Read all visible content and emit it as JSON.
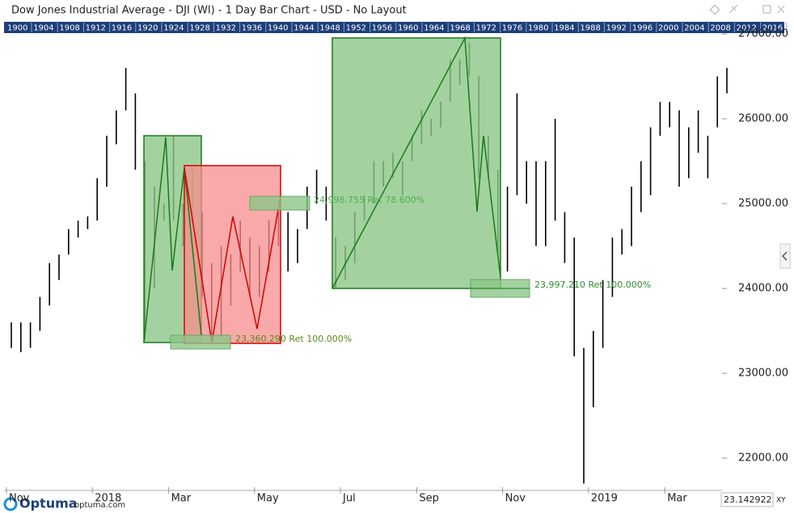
{
  "window": {
    "title": "Dow Jones Industrial Average - DJI (WI) - 1 Day Bar Chart - USD - No Layout"
  },
  "ruler_years": [
    "1900",
    "1904",
    "1908",
    "1912",
    "1916",
    "1920",
    "1924",
    "1928",
    "1932",
    "1936",
    "1940",
    "1944",
    "1948",
    "1952",
    "1956",
    "1960",
    "1964",
    "1968",
    "1972",
    "1976",
    "1980",
    "1984",
    "1988",
    "1992",
    "1996",
    "2000",
    "2004",
    "2008",
    "2012",
    "2016"
  ],
  "chart_data": {
    "type": "hilo",
    "categories": [
      "Nov",
      null,
      null,
      null,
      null,
      null,
      null,
      null,
      null,
      "2018",
      null,
      null,
      null,
      null,
      null,
      null,
      null,
      "Mar",
      null,
      null,
      null,
      null,
      null,
      null,
      null,
      null,
      "May",
      null,
      null,
      null,
      null,
      null,
      null,
      null,
      null,
      "Jul",
      null,
      null,
      null,
      null,
      null,
      null,
      null,
      "Sep",
      null,
      null,
      null,
      null,
      null,
      null,
      null,
      null,
      "Nov",
      null,
      null,
      null,
      null,
      null,
      null,
      null,
      null,
      "2019",
      null,
      null,
      null,
      null,
      null,
      null,
      null,
      "Mar",
      null,
      null,
      null,
      null,
      null,
      null
    ],
    "highs": [
      23600,
      23600,
      23600,
      23900,
      24300,
      24400,
      24700,
      24800,
      24850,
      25300,
      25800,
      26100,
      26600,
      26300,
      25500,
      25200,
      25000,
      25800,
      25000,
      25400,
      24900,
      24300,
      24500,
      24400,
      24800,
      24600,
      24500,
      24800,
      24900,
      24900,
      24700,
      25200,
      25400,
      25200,
      24600,
      24500,
      24900,
      25100,
      25500,
      25500,
      25600,
      25500,
      25800,
      26100,
      26000,
      26200,
      26700,
      26700,
      26900,
      26500,
      25800,
      25400,
      25200,
      26300,
      25500,
      25500,
      25500,
      26000,
      24900,
      24600,
      23300,
      23500,
      24100,
      24600,
      24700,
      25200,
      25500,
      25900,
      26200,
      26200,
      26100,
      25900,
      26100,
      25800,
      26500,
      26600
    ],
    "lows": [
      23300,
      23250,
      23300,
      23500,
      23800,
      24100,
      24400,
      24600,
      24700,
      24800,
      25200,
      25700,
      26100,
      25400,
      23400,
      24000,
      24800,
      24800,
      24500,
      24800,
      23900,
      23400,
      23400,
      23800,
      24200,
      23900,
      23900,
      24200,
      24500,
      24200,
      24300,
      24700,
      25000,
      24800,
      24000,
      24100,
      24300,
      24800,
      25000,
      25200,
      25300,
      25100,
      25500,
      25700,
      25800,
      25900,
      26200,
      26400,
      26500,
      25300,
      25300,
      24400,
      24200,
      25100,
      25000,
      24500,
      24500,
      24800,
      24300,
      23200,
      21700,
      22600,
      23300,
      23900,
      24400,
      24500,
      24900,
      25100,
      25800,
      25900,
      25200,
      25300,
      25600,
      25300,
      25900,
      26300
    ],
    "color": "#000000",
    "ylim": [
      21620,
      27010
    ],
    "yticks": [
      {
        "value": 22000,
        "label": "22000.00"
      },
      {
        "value": 23000,
        "label": "23000.00"
      },
      {
        "value": 24000,
        "label": "24000.00"
      },
      {
        "value": 25000,
        "label": "25000.00"
      },
      {
        "value": 26000,
        "label": "26000.00"
      },
      {
        "value": 27000,
        "label": "27000.00"
      }
    ],
    "annotations": [
      "24,998.755 Ret 78.600%",
      "23,360.290 Ret 100.000%",
      "23,997.210 Ret 100.000%"
    ]
  },
  "footer": {
    "brand": "Optuma",
    "site": "optuma.com",
    "readout": "23.142922",
    "mode": "XY"
  }
}
